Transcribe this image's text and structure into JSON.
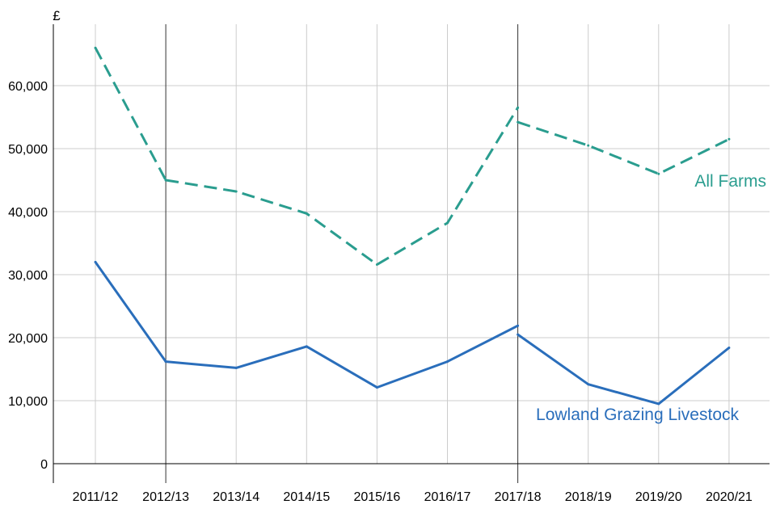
{
  "chart_data": {
    "type": "line",
    "title": "",
    "ylabel": "£",
    "xlabel": "",
    "categories": [
      "2011/12",
      "2012/13",
      "2013/14",
      "2014/15",
      "2015/16",
      "2016/17",
      "2017/18",
      "2018/19",
      "2019/20",
      "2020/21"
    ],
    "ylim": [
      0,
      70000
    ],
    "yticks": [
      0,
      10000,
      20000,
      30000,
      40000,
      50000,
      60000
    ],
    "ytick_labels": [
      "0",
      "10,000",
      "20,000",
      "30,000",
      "40,000",
      "50,000",
      "60,000"
    ],
    "grid": true,
    "break_markers": [
      "2012/13",
      "2017/18"
    ],
    "series": [
      {
        "name": "All Farms",
        "color": "#2a9d8f",
        "dash": "dashed",
        "segments": [
          {
            "x": [
              "2011/12",
              "2012/13"
            ],
            "values": [
              66000,
              45000
            ]
          },
          {
            "x": [
              "2012/13",
              "2013/14",
              "2014/15",
              "2015/16",
              "2016/17",
              "2017/18"
            ],
            "values": [
              45000,
              43200,
              39700,
              31600,
              38200,
              56500
            ]
          },
          {
            "x": [
              "2017/18",
              "2018/19",
              "2019/20",
              "2020/21"
            ],
            "values": [
              54200,
              50500,
              46000,
              51500
            ]
          }
        ]
      },
      {
        "name": "Lowland Grazing Livestock",
        "color": "#2a6ebb",
        "dash": "solid",
        "segments": [
          {
            "x": [
              "2011/12",
              "2012/13"
            ],
            "values": [
              32000,
              16200
            ]
          },
          {
            "x": [
              "2012/13",
              "2013/14",
              "2014/15",
              "2015/16",
              "2016/17",
              "2017/18"
            ],
            "values": [
              16200,
              15200,
              18600,
              12100,
              16200,
              21900
            ]
          },
          {
            "x": [
              "2017/18",
              "2018/19",
              "2019/20",
              "2020/21"
            ],
            "values": [
              20500,
              12600,
              9500,
              18400
            ]
          }
        ]
      }
    ]
  }
}
